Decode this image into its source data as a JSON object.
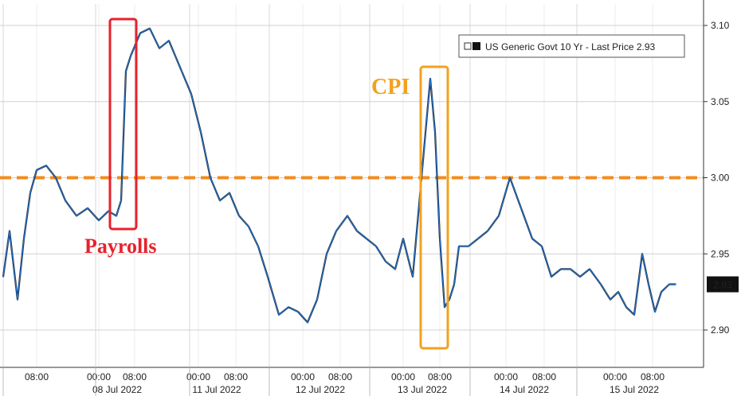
{
  "chart_data": {
    "type": "line",
    "title": "",
    "xlabel": "",
    "ylabel": "",
    "ylim": [
      2.87,
      3.12
    ],
    "y_ticks": [
      "3.10",
      "3.05",
      "3.00",
      "2.95",
      "2.90"
    ],
    "y_tick_values": [
      3.1,
      3.05,
      3.0,
      2.95,
      2.9
    ],
    "x_time_labels": [
      "08:00",
      "00:00",
      "08:00",
      "00:00",
      "08:00",
      "00:00",
      "08:00",
      "00:00",
      "08:00",
      "00:00",
      "08:00",
      "00:00",
      "08:00"
    ],
    "x_date_labels": [
      "08 Jul 2022",
      "11 Jul 2022",
      "12 Jul 2022",
      "13 Jul 2022",
      "14 Jul 2022",
      "15 Jul 2022"
    ],
    "grid": true,
    "legend": {
      "position": "top-right",
      "text": "US Generic Govt 10 Yr - Last Price 2.93"
    },
    "last_price_label": "2.93",
    "reference_line": {
      "value": 3.0,
      "style": "dashed",
      "color": "#f28c1e"
    },
    "annotations": [
      {
        "text": "Payrolls",
        "color": "#e8212b"
      },
      {
        "text": "CPI",
        "color": "#f2a11e"
      }
    ],
    "series": [
      {
        "name": "US Generic Govt 10 Yr - Last Price",
        "color": "#1f6fc9",
        "x": [
          "07 Jul 04:00",
          "07 Jul 06:00",
          "07 Jul 08:00",
          "07 Jul 10:00",
          "07 Jul 12:00",
          "07 Jul 14:00",
          "07 Jul 16:00",
          "07 Jul 18:00",
          "07 Jul 20:00",
          "07 Jul 22:00",
          "08 Jul 00:00",
          "08 Jul 02:00",
          "08 Jul 04:00",
          "08 Jul 06:00",
          "08 Jul 08:00",
          "08 Jul 08:30",
          "08 Jul 09:00",
          "08 Jul 10:00",
          "08 Jul 12:00",
          "08 Jul 14:00",
          "08 Jul 16:00",
          "08 Jul 18:00",
          "11 Jul 00:00",
          "11 Jul 02:00",
          "11 Jul 04:00",
          "11 Jul 06:00",
          "11 Jul 08:00",
          "11 Jul 10:00",
          "11 Jul 12:00",
          "11 Jul 14:00",
          "11 Jul 16:00",
          "11 Jul 18:00",
          "11 Jul 20:00",
          "11 Jul 22:00",
          "12 Jul 00:00",
          "12 Jul 02:00",
          "12 Jul 04:00",
          "12 Jul 06:00",
          "12 Jul 08:00",
          "12 Jul 10:00",
          "12 Jul 12:00",
          "12 Jul 14:00",
          "12 Jul 16:00",
          "12 Jul 18:00",
          "12 Jul 20:00",
          "12 Jul 22:00",
          "13 Jul 00:00",
          "13 Jul 02:00",
          "13 Jul 04:00",
          "13 Jul 06:00",
          "13 Jul 08:00",
          "13 Jul 08:30",
          "13 Jul 09:00",
          "13 Jul 10:00",
          "13 Jul 12:00",
          "13 Jul 14:00",
          "13 Jul 16:00",
          "13 Jul 18:00",
          "13 Jul 20:00",
          "13 Jul 22:00",
          "14 Jul 00:00",
          "14 Jul 02:00",
          "14 Jul 04:00",
          "14 Jul 06:00",
          "14 Jul 08:00",
          "14 Jul 10:00",
          "14 Jul 12:00",
          "14 Jul 14:00",
          "14 Jul 16:00",
          "14 Jul 18:00",
          "15 Jul 00:00",
          "15 Jul 02:00",
          "15 Jul 04:00",
          "15 Jul 06:00",
          "15 Jul 08:00",
          "15 Jul 10:00",
          "15 Jul 12:00"
        ],
        "values": [
          2.935,
          2.965,
          2.92,
          2.96,
          2.99,
          3.005,
          3.008,
          3.0,
          2.985,
          2.975,
          2.98,
          2.972,
          2.978,
          2.975,
          2.985,
          3.07,
          3.08,
          3.095,
          3.098,
          3.085,
          3.09,
          3.07,
          3.055,
          3.03,
          3.0,
          2.985,
          2.99,
          2.975,
          2.968,
          2.955,
          2.935,
          2.91,
          2.915,
          2.912,
          2.905,
          2.92,
          2.95,
          2.965,
          2.975,
          2.965,
          2.96,
          2.955,
          2.945,
          2.94,
          2.96,
          2.935,
          3.065,
          3.03,
          2.96,
          2.915,
          2.92,
          2.93,
          2.955,
          2.955,
          2.96,
          2.965,
          2.975,
          3.0,
          2.98,
          2.96,
          2.955,
          2.935,
          2.94,
          2.94,
          2.935,
          2.94,
          2.93,
          2.92,
          2.925,
          2.915,
          2.91,
          2.95,
          2.93,
          2.912,
          2.925,
          2.93,
          2.93
        ]
      }
    ]
  }
}
